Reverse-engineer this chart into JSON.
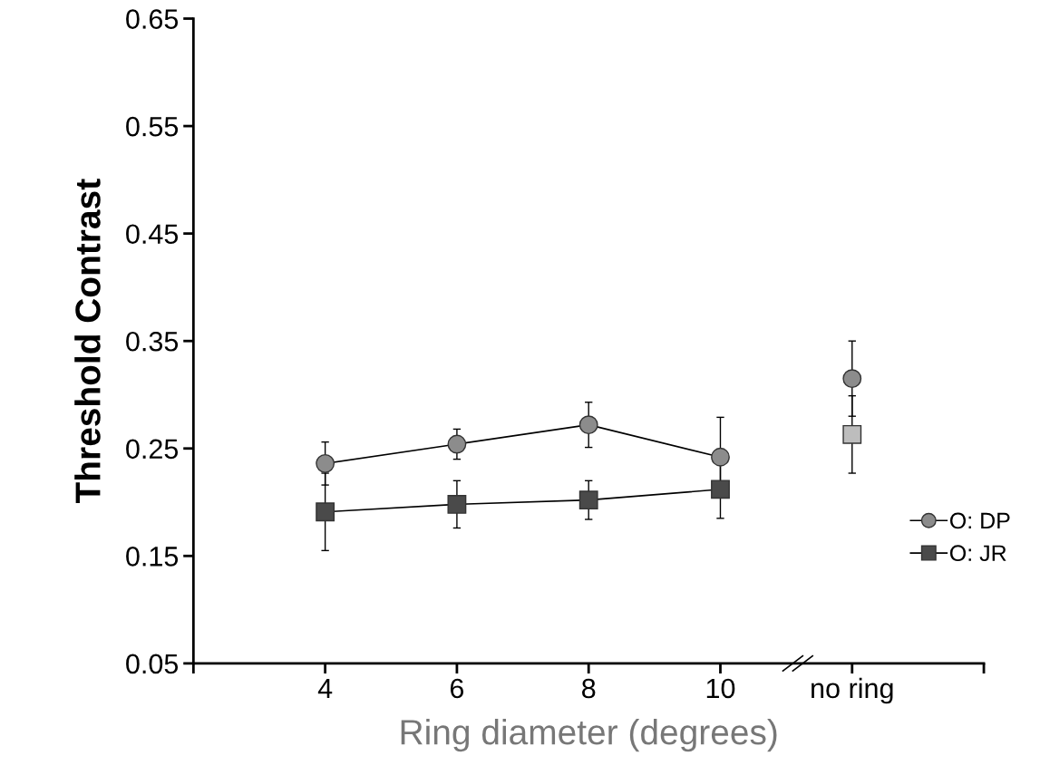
{
  "chart_data": {
    "type": "line",
    "xlabel": "Ring diameter (degrees)",
    "ylabel": "Threshold Contrast",
    "xlim": [
      2,
      14
    ],
    "xticks": [
      {
        "value": 2,
        "label": null
      },
      4,
      6,
      8,
      10,
      {
        "value": 12,
        "label": "no ring"
      },
      {
        "value": 14,
        "label": null
      }
    ],
    "ylim": [
      0.05,
      0.65
    ],
    "yticks": [
      0.05,
      0.15,
      0.25,
      0.35,
      0.45,
      0.55,
      0.65
    ],
    "grid": false,
    "legend": "bottom right",
    "series": [
      {
        "name": "O: DP",
        "color": "#8c8c8c",
        "marker": "circle",
        "x": [
          4,
          6,
          8,
          10
        ],
        "values": [
          0.236,
          0.254,
          0.272,
          0.242
        ],
        "errors": [
          0.02,
          0.014,
          0.021,
          0.037
        ]
      },
      {
        "name": "O: JR",
        "color": "#4a4a4a",
        "marker": "square",
        "x": [
          4,
          6,
          8,
          10
        ],
        "values": [
          0.191,
          0.198,
          0.202,
          0.212
        ],
        "errors": [
          0.036,
          0.022,
          0.018,
          0.027
        ]
      },
      {
        "type": "scatter",
        "color": "#8c8c8c",
        "marker": "circle",
        "x": [
          12
        ],
        "values": [
          0.315
        ],
        "errors": [
          0.035
        ]
      },
      {
        "type": "scatter",
        "color": "#bdbdbd",
        "marker": "square",
        "x": [
          12
        ],
        "values": [
          0.263
        ],
        "errors": [
          0.036
        ]
      }
    ]
  }
}
